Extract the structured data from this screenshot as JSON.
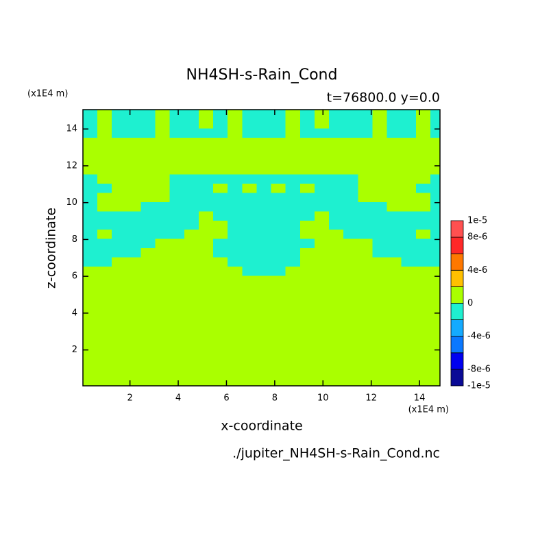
{
  "chart_data": {
    "type": "contour",
    "title": "NH4SH-s-Rain_Cond",
    "subtitle": "t=76800.0 y=0.0",
    "x_unit": "(x1E4 m)",
    "y_unit": "(x1E4 m)",
    "xlabel": "x-coordinate",
    "ylabel": "z-coordinate",
    "source": "./jupiter_NH4SH-s-Rain_Cond.nc",
    "xlim": [
      0.05,
      14.85
    ],
    "ylim": [
      0.05,
      15.05
    ],
    "xticks": [
      2,
      4,
      6,
      8,
      10,
      12,
      14
    ],
    "yticks": [
      2,
      4,
      6,
      8,
      10,
      12,
      14
    ],
    "x": [
      0.35,
      0.95,
      1.55,
      2.15,
      2.75,
      3.35,
      3.95,
      4.55,
      5.15,
      5.75,
      6.35,
      6.95,
      7.55,
      8.15,
      8.75,
      9.35,
      9.95,
      10.55,
      11.15,
      11.75,
      12.35,
      12.95,
      13.55,
      14.15,
      14.75
    ],
    "y": [
      0.3,
      0.8,
      1.3,
      1.8,
      2.3,
      2.8,
      3.3,
      3.8,
      4.3,
      4.8,
      5.3,
      5.8,
      6.3,
      6.8,
      7.3,
      7.8,
      8.3,
      8.8,
      9.3,
      9.8,
      10.3,
      10.8,
      11.3,
      11.8,
      12.3,
      12.8,
      13.3,
      13.8,
      14.3,
      14.8
    ],
    "z": [
      [
        0,
        0,
        0,
        0,
        0,
        0,
        0,
        0,
        0,
        0,
        0,
        0,
        0,
        0,
        0,
        0,
        0,
        0,
        0,
        0,
        0,
        0,
        0,
        0,
        0
      ],
      [
        0,
        0,
        0,
        0,
        0,
        0,
        0,
        0,
        0,
        0,
        0,
        0,
        0,
        0,
        0,
        0,
        0,
        0,
        0,
        0,
        0,
        0,
        0,
        0,
        0
      ],
      [
        0,
        0,
        0,
        0,
        0,
        0,
        0,
        0,
        0,
        0,
        0,
        0,
        0,
        0,
        0,
        0,
        0,
        0,
        0,
        0,
        0,
        0,
        0,
        0,
        0
      ],
      [
        0,
        0,
        0,
        0,
        0,
        0,
        0,
        0,
        0,
        0,
        0,
        0,
        0,
        0,
        0,
        0,
        0,
        0,
        0,
        0,
        0,
        0,
        0,
        0,
        0
      ],
      [
        0,
        0,
        0,
        0,
        0,
        0,
        0,
        0,
        0,
        0,
        0,
        0,
        0,
        0,
        0,
        0,
        0,
        0,
        0,
        0,
        0,
        0,
        0,
        0,
        0
      ],
      [
        0,
        0,
        0,
        0,
        0,
        0,
        0,
        0,
        0,
        0,
        0,
        0,
        0,
        0,
        0,
        0,
        0,
        0,
        0,
        0,
        0,
        0,
        0,
        0,
        0
      ],
      [
        0,
        0,
        0,
        0,
        0,
        0,
        0,
        0,
        0,
        0,
        0,
        0,
        0,
        0,
        0,
        0,
        0,
        0,
        0,
        0,
        0,
        0,
        0,
        0,
        0
      ],
      [
        0,
        0,
        0,
        0,
        0,
        0,
        0,
        0,
        0,
        0,
        0,
        0,
        0,
        0,
        0,
        0,
        0,
        0,
        0,
        0,
        0,
        0,
        0,
        0,
        0
      ],
      [
        0,
        0,
        0,
        0,
        0,
        0,
        0,
        0,
        0,
        0,
        0,
        0,
        0,
        0,
        0,
        0,
        0,
        0,
        0,
        0,
        0,
        0,
        0,
        0,
        0
      ],
      [
        0,
        0,
        0,
        0,
        0,
        0,
        0,
        0,
        0,
        0,
        0,
        0,
        0,
        0,
        0,
        0,
        0,
        0,
        0,
        0,
        0,
        0,
        0,
        0,
        0
      ],
      [
        0,
        0,
        0,
        0,
        0,
        0,
        0,
        0,
        0,
        0,
        0,
        0,
        0,
        0,
        0,
        0,
        0,
        0,
        0,
        0,
        0,
        0,
        0,
        0,
        0
      ],
      [
        0,
        0,
        0,
        0,
        0,
        0,
        0,
        0,
        0,
        0,
        0,
        0,
        0,
        0,
        0,
        0,
        0,
        0,
        0,
        0,
        0,
        0,
        0,
        0,
        0
      ],
      [
        0,
        0,
        0,
        0,
        0,
        0,
        0,
        0,
        0,
        0,
        0,
        -1e-06,
        -1e-06,
        -1e-06,
        0,
        0,
        0,
        0,
        0,
        0,
        0,
        0,
        0,
        0,
        0
      ],
      [
        -1e-06,
        -1e-06,
        0,
        0,
        0,
        0,
        0,
        0,
        0,
        0,
        -1e-06,
        -1e-06,
        -1e-06,
        -1e-06,
        -1e-06,
        0,
        0,
        0,
        0,
        0,
        0,
        0,
        -1e-06,
        -1e-06,
        -1e-06
      ],
      [
        -1e-06,
        -1e-06,
        -1e-06,
        -1e-06,
        0,
        0,
        0,
        0,
        0,
        -1e-06,
        -1e-06,
        -1e-06,
        -1e-06,
        -1e-06,
        -1e-06,
        0,
        0,
        0,
        0,
        0,
        -1e-06,
        -1e-06,
        -1e-06,
        -1e-06,
        -1e-06
      ],
      [
        -1e-06,
        -1e-06,
        -1e-06,
        -1e-06,
        -1e-06,
        0,
        0,
        0,
        0,
        -1e-06,
        -1e-06,
        -1e-06,
        -1e-06,
        -1e-06,
        -1e-06,
        -1e-06,
        0,
        0,
        0,
        0,
        -1e-06,
        -1e-06,
        -1e-06,
        -1e-06,
        -1e-06
      ],
      [
        -1e-06,
        0,
        -1e-06,
        -1e-06,
        -1e-06,
        -1e-06,
        -1e-06,
        0,
        0,
        0,
        -1e-06,
        -1e-06,
        -1e-06,
        -1e-06,
        -1e-06,
        0,
        0,
        0,
        -1e-06,
        -1e-06,
        -1e-06,
        -1e-06,
        -1e-06,
        0,
        -1e-06
      ],
      [
        -1e-06,
        -1e-06,
        -1e-06,
        -1e-06,
        -1e-06,
        -1e-06,
        -1e-06,
        -1e-06,
        0,
        0,
        -1e-06,
        -1e-06,
        -1e-06,
        -1e-06,
        -1e-06,
        0,
        0,
        -1e-06,
        -1e-06,
        -1e-06,
        -1e-06,
        -1e-06,
        -1e-06,
        -1e-06,
        -1e-06
      ],
      [
        -1e-06,
        -1e-06,
        -1e-06,
        -1e-06,
        -1e-06,
        -1e-06,
        -1e-06,
        -1e-06,
        0,
        -1e-06,
        -1e-06,
        -1e-06,
        -1e-06,
        -1e-06,
        -1e-06,
        -1e-06,
        0,
        -1e-06,
        -1e-06,
        -1e-06,
        -1e-06,
        -1e-06,
        -1e-06,
        -1e-06,
        -1e-06
      ],
      [
        -1e-06,
        0,
        0,
        0,
        -1e-06,
        -1e-06,
        -1e-06,
        -1e-06,
        -1e-06,
        -1e-06,
        -1e-06,
        -1e-06,
        -1e-06,
        -1e-06,
        -1e-06,
        -1e-06,
        -1e-06,
        -1e-06,
        -1e-06,
        -1e-06,
        -1e-06,
        0,
        0,
        0,
        -1e-06
      ],
      [
        -1e-06,
        0,
        0,
        0,
        0,
        0,
        -1e-06,
        -1e-06,
        -1e-06,
        -1e-06,
        -1e-06,
        -1e-06,
        -1e-06,
        -1e-06,
        -1e-06,
        -1e-06,
        -1e-06,
        -1e-06,
        -1e-06,
        0,
        0,
        0,
        0,
        0,
        -1e-06
      ],
      [
        -1e-06,
        -1e-06,
        0,
        0,
        0,
        0,
        -1e-06,
        -1e-06,
        -1e-06,
        0,
        -1e-06,
        0,
        -1e-06,
        0,
        -1e-06,
        0,
        -1e-06,
        -1e-06,
        -1e-06,
        0,
        0,
        0,
        0,
        -1e-06,
        -1e-06
      ],
      [
        -1e-06,
        0,
        0,
        0,
        0,
        0,
        -1e-06,
        -1e-06,
        -1e-06,
        -1e-06,
        -1e-06,
        -1e-06,
        -1e-06,
        -1e-06,
        -1e-06,
        -1e-06,
        -1e-06,
        -1e-06,
        -1e-06,
        0,
        0,
        0,
        0,
        0,
        -1e-06
      ],
      [
        0,
        0,
        0,
        0,
        0,
        0,
        0,
        0,
        0,
        0,
        0,
        0,
        0,
        0,
        0,
        0,
        0,
        0,
        0,
        0,
        0,
        0,
        0,
        0,
        0
      ],
      [
        0,
        0,
        0,
        0,
        0,
        0,
        0,
        0,
        0,
        0,
        0,
        0,
        0,
        0,
        0,
        0,
        0,
        0,
        0,
        0,
        0,
        0,
        0,
        0,
        0
      ],
      [
        0,
        0,
        0,
        0,
        0,
        0,
        0,
        0,
        0,
        0,
        0,
        0,
        0,
        0,
        0,
        0,
        0,
        0,
        0,
        0,
        0,
        0,
        0,
        0,
        0
      ],
      [
        0,
        0,
        0,
        0,
        0,
        0,
        0,
        0,
        0,
        0,
        0,
        0,
        0,
        0,
        0,
        0,
        0,
        0,
        0,
        0,
        0,
        0,
        0,
        0,
        0
      ],
      [
        -1e-06,
        0,
        -1e-06,
        -1e-06,
        -1e-06,
        0,
        -1e-06,
        -1e-06,
        -1e-06,
        -1e-06,
        0,
        -1e-06,
        -1e-06,
        -1e-06,
        0,
        -1e-06,
        -1e-06,
        -1e-06,
        -1e-06,
        -1e-06,
        0,
        -1e-06,
        -1e-06,
        0,
        -1e-06
      ],
      [
        -1e-06,
        0,
        -1e-06,
        -1e-06,
        -1e-06,
        0,
        -1e-06,
        -1e-06,
        0,
        -1e-06,
        0,
        -1e-06,
        -1e-06,
        -1e-06,
        0,
        -1e-06,
        0,
        -1e-06,
        -1e-06,
        -1e-06,
        0,
        -1e-06,
        -1e-06,
        0,
        -1e-06
      ],
      [
        -1e-06,
        0,
        -1e-06,
        -1e-06,
        -1e-06,
        0,
        -1e-06,
        -1e-06,
        0,
        -1e-06,
        0,
        -1e-06,
        -1e-06,
        -1e-06,
        0,
        -1e-06,
        0,
        -1e-06,
        -1e-06,
        -1e-06,
        0,
        -1e-06,
        -1e-06,
        0,
        -1e-06
      ]
    ],
    "colorbar": {
      "levels": [
        -1e-05,
        -8e-06,
        -6e-06,
        -4e-06,
        -2e-06,
        0,
        2e-06,
        4e-06,
        6e-06,
        8e-06,
        1e-05
      ],
      "colors": [
        "#0a0a96",
        "#0000f0",
        "#0a78ff",
        "#14aaff",
        "#1ef0d0",
        "#aaff00",
        "#ffc000",
        "#ff7800",
        "#ff2828",
        "#ff5050"
      ],
      "ticks": [
        {
          "value": 1e-05,
          "label": "1e-5"
        },
        {
          "value": 8e-06,
          "label": "8e-6"
        },
        {
          "value": 4e-06,
          "label": "4e-6"
        },
        0,
        {
          "value": -4e-06,
          "label": "-4e-6"
        },
        {
          "value": -8e-06,
          "label": "-8e-6"
        },
        {
          "value": -1e-05,
          "label": "-1e-5"
        }
      ]
    }
  }
}
